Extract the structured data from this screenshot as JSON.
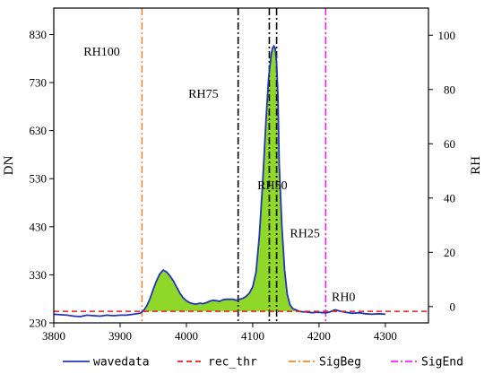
{
  "chart_data": {
    "type": "line",
    "xlabel": "",
    "ylabel_left": "DN",
    "ylabel_right": "RH",
    "xlim": [
      3800,
      4365
    ],
    "ylim_left": [
      230,
      885
    ],
    "ylim_right": [
      -6,
      110
    ],
    "x_ticks": [
      3800,
      3900,
      4000,
      4100,
      4200,
      4300
    ],
    "y_ticks_left": [
      230,
      330,
      430,
      530,
      630,
      730,
      830
    ],
    "y_ticks_right": [
      0,
      20,
      40,
      60,
      80,
      100
    ],
    "grid": false,
    "legend_placement": "bottom-outside",
    "series": [
      {
        "name": "wavedata",
        "style": "solid",
        "color": "#2234b8",
        "x": [
          3800,
          3810,
          3820,
          3830,
          3840,
          3850,
          3860,
          3870,
          3880,
          3890,
          3900,
          3910,
          3920,
          3930,
          3935,
          3940,
          3945,
          3950,
          3955,
          3960,
          3965,
          3970,
          3975,
          3980,
          3985,
          3990,
          3995,
          4000,
          4005,
          4010,
          4015,
          4020,
          4025,
          4030,
          4035,
          4040,
          4045,
          4050,
          4055,
          4060,
          4065,
          4070,
          4075,
          4080,
          4085,
          4090,
          4095,
          4100,
          4105,
          4110,
          4115,
          4120,
          4124,
          4128,
          4130,
          4132,
          4134,
          4136,
          4138,
          4140,
          4144,
          4148,
          4152,
          4156,
          4160,
          4165,
          4170,
          4175,
          4180,
          4185,
          4190,
          4195,
          4200,
          4205,
          4210,
          4215,
          4220,
          4225,
          4230,
          4240,
          4250,
          4260,
          4270,
          4280,
          4290,
          4300
        ],
        "y": [
          248,
          247,
          246,
          244,
          243,
          246,
          245,
          244,
          246,
          245,
          246,
          246,
          248,
          250,
          255,
          265,
          280,
          300,
          318,
          332,
          340,
          336,
          328,
          318,
          305,
          292,
          282,
          276,
          272,
          270,
          269,
          271,
          270,
          272,
          275,
          277,
          276,
          275,
          278,
          279,
          279,
          279,
          277,
          279,
          281,
          285,
          292,
          305,
          335,
          410,
          520,
          650,
          740,
          790,
          802,
          806,
          800,
          770,
          700,
          560,
          430,
          340,
          290,
          268,
          260,
          257,
          254,
          253,
          253,
          252,
          251,
          252,
          252,
          251,
          251,
          252,
          255,
          257,
          255,
          252,
          250,
          251,
          249,
          248,
          249,
          248
        ]
      },
      {
        "name": "rec_thr",
        "style": "dashed",
        "color": "#e02020",
        "x": [
          3800,
          4365
        ],
        "y": [
          254,
          254
        ]
      }
    ],
    "vertical_lines": [
      {
        "name": "SigBeg",
        "x": 3933,
        "color": "#ee8833",
        "style": "dashdot"
      },
      {
        "name": "SigEnd",
        "x": 4210,
        "color": "#ee22ee",
        "style": "dashdot"
      },
      {
        "name": "rh75-line",
        "x": 4078,
        "color": "#000000",
        "style": "dashdot"
      },
      {
        "name": "rh50-line",
        "x": 4125,
        "color": "#000000",
        "style": "dashdot"
      },
      {
        "name": "rh25-line",
        "x": 4136,
        "color": "#000000",
        "style": "dashdot"
      }
    ],
    "annotations": [
      {
        "text": "RH100",
        "x": 3845,
        "y": 786
      },
      {
        "text": "RH75",
        "x": 4003,
        "y": 698
      },
      {
        "text": "RH50",
        "x": 4107,
        "y": 508
      },
      {
        "text": "RH25",
        "x": 4156,
        "y": 408
      },
      {
        "text": "RH0",
        "x": 4219,
        "y": 276
      }
    ],
    "legend": [
      {
        "label": "wavedata",
        "color": "#2234b8",
        "style": "solid"
      },
      {
        "label": "rec_thr",
        "color": "#e02020",
        "style": "dashed"
      },
      {
        "label": "SigBeg",
        "color": "#ee8833",
        "style": "dashdot"
      },
      {
        "label": "SigEnd",
        "color": "#ee22ee",
        "style": "dashdot"
      }
    ],
    "fill_color": "#8fd82a"
  }
}
